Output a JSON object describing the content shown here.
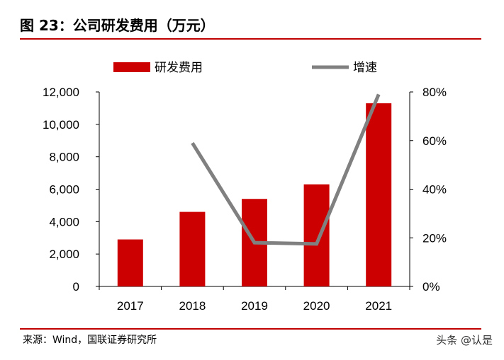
{
  "title": "图 23：公司研发费用（万元）",
  "source": "来源：Wind，国联证券研究所",
  "watermark": "头条 @认是",
  "colors": {
    "bar": "#cc0000",
    "line": "#808080",
    "accent": "#c00000"
  },
  "chart_data": {
    "type": "bar",
    "categories": [
      "2017",
      "2018",
      "2019",
      "2020",
      "2021"
    ],
    "series": [
      {
        "name": "研发费用",
        "type": "bar",
        "axis": "left",
        "values": [
          2900,
          4600,
          5400,
          6300,
          11300
        ]
      },
      {
        "name": "增速",
        "type": "line",
        "axis": "right",
        "values": [
          null,
          0.59,
          0.18,
          0.175,
          0.79
        ]
      }
    ],
    "left_axis": {
      "ylim": [
        0,
        12000
      ],
      "ticks": [
        "0",
        "2,000",
        "4,000",
        "6,000",
        "8,000",
        "10,000",
        "12,000"
      ]
    },
    "right_axis": {
      "ylim": [
        0,
        0.8
      ],
      "ticks": [
        "0%",
        "20%",
        "40%",
        "60%",
        "80%"
      ]
    },
    "legend": "top",
    "grid": false
  }
}
